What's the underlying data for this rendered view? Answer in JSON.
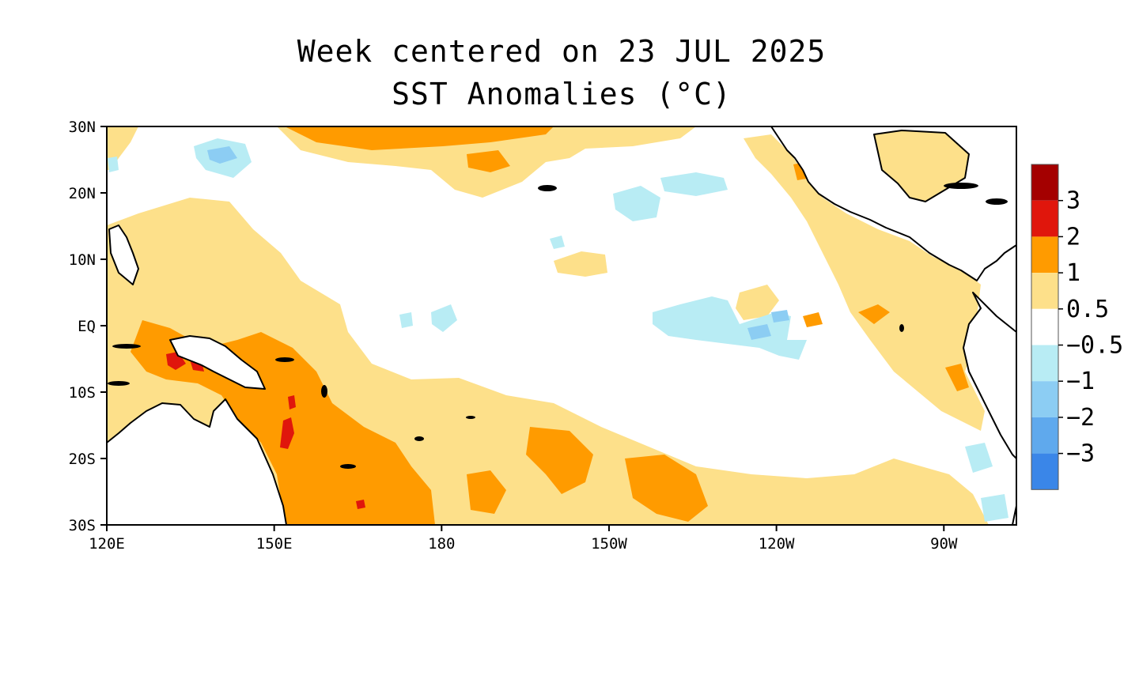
{
  "title": {
    "line1": "Week centered on 23 JUL 2025",
    "line2": "SST Anomalies (°C)"
  },
  "map": {
    "lat_range": [
      -30,
      30
    ],
    "lon_range": [
      120,
      283
    ],
    "lat_ticks": [
      "30N",
      "20N",
      "10N",
      "EQ",
      "10S",
      "20S",
      "30S"
    ],
    "lon_ticks": [
      "120E",
      "150E",
      "180",
      "150W",
      "120W",
      "90W"
    ]
  },
  "colorbar": {
    "bins": [
      {
        "color": "#a40000"
      },
      {
        "color": "#e0160c"
      },
      {
        "color": "#ff9b00"
      },
      {
        "color": "#fde08a"
      },
      {
        "color": "#ffffff"
      },
      {
        "color": "#b8ecf4"
      },
      {
        "color": "#8ccdf3"
      },
      {
        "color": "#5fa9ed"
      },
      {
        "color": "#3a86e8"
      }
    ],
    "labels": [
      "3",
      "2",
      "1",
      "0.5",
      "−0.5",
      "−1",
      "−2",
      "−3"
    ]
  },
  "colors": {
    "land": "#ffffff",
    "coast": "#000000",
    "weak_warm": "#fde08a",
    "warm": "#ff9b00",
    "strong_warm": "#e0160c",
    "cool": "#b8ecf4",
    "cooler": "#8ccdf3"
  }
}
